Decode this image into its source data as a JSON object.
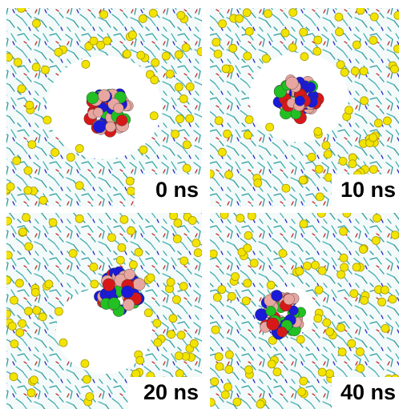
{
  "panels": [
    {
      "label": "0 ns"
    },
    {
      "label": "10 ns"
    },
    {
      "label": "20 ns"
    },
    {
      "label": "40 ns"
    }
  ]
}
